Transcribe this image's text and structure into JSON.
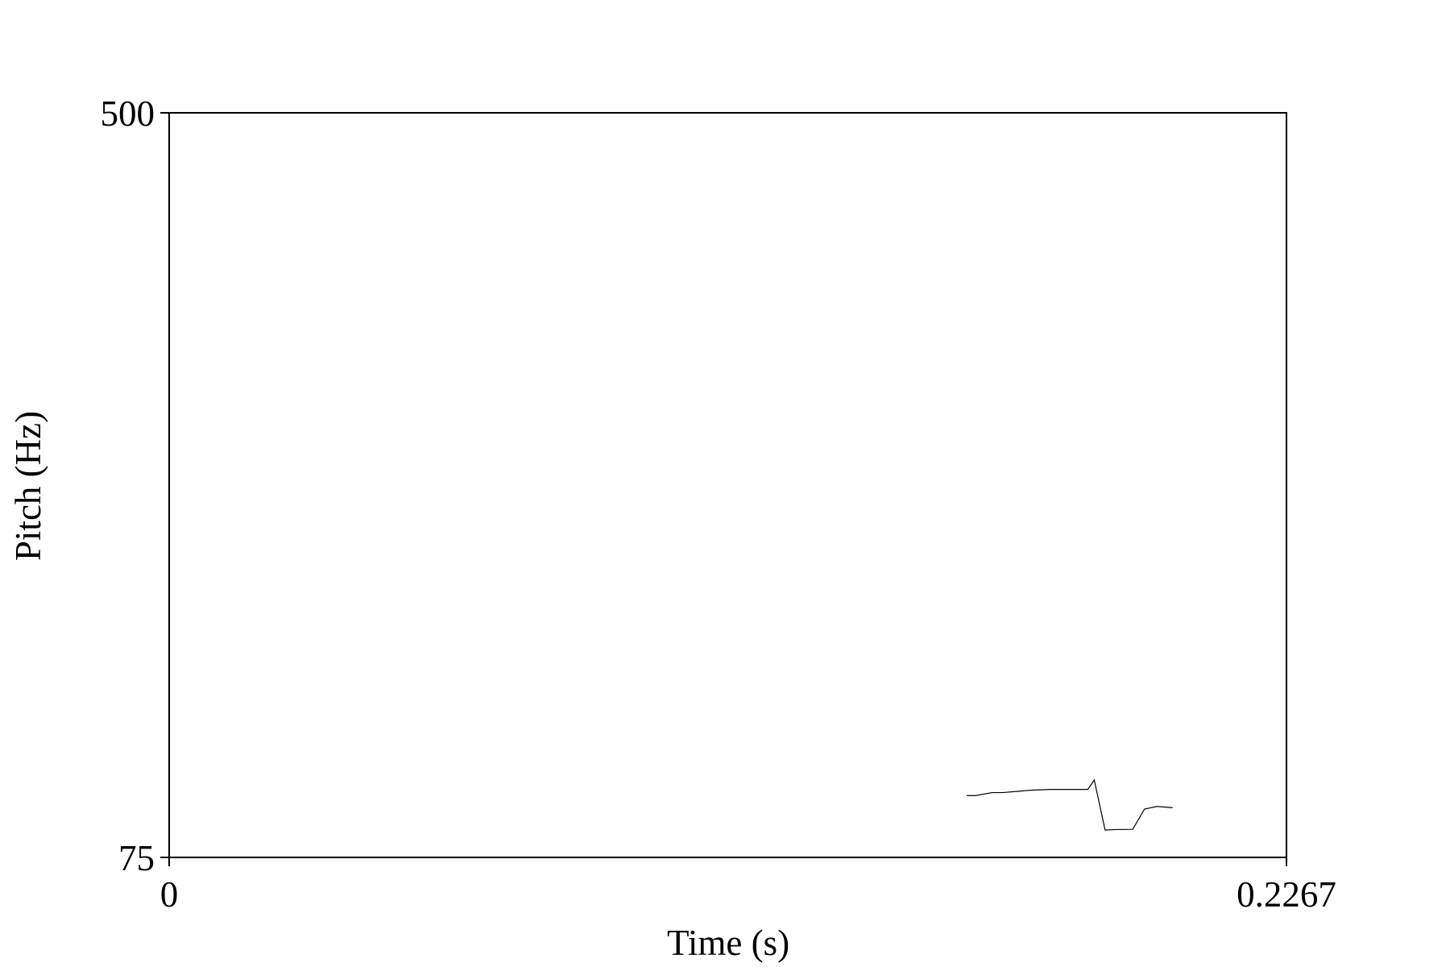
{
  "chart_data": {
    "type": "line",
    "title": "",
    "xlabel": "Time (s)",
    "ylabel": "Pitch (Hz)",
    "xlim": [
      0,
      0.2267
    ],
    "ylim": [
      75,
      500
    ],
    "x_tick_labels": [
      "0",
      "0.2267"
    ],
    "y_tick_labels": [
      "75",
      "500"
    ],
    "grid": false,
    "series": [
      {
        "x": [
          0.1618,
          0.1636,
          0.167,
          0.1691,
          0.1751,
          0.1789,
          0.1864,
          0.1877,
          0.1899,
          0.192,
          0.1955,
          0.1979,
          0.2004,
          0.2036
        ],
        "y": [
          110.3,
          110.3,
          112.0,
          112.0,
          113.4,
          113.8,
          113.8,
          119.2,
          90.6,
          90.9,
          91.0,
          102.6,
          104.1,
          103.4
        ]
      }
    ]
  }
}
